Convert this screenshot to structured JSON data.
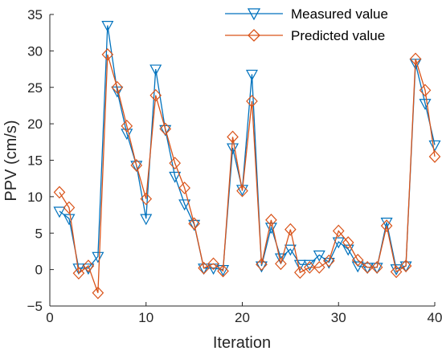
{
  "chart_data": {
    "type": "line",
    "xlabel": "Iteration",
    "ylabel": "PPV (cm/s)",
    "xlim": [
      0,
      40
    ],
    "ylim": [
      -5,
      35
    ],
    "xticks": [
      0,
      10,
      20,
      30,
      40
    ],
    "yticks": [
      -5,
      0,
      5,
      10,
      15,
      20,
      25,
      30,
      35
    ],
    "x": [
      1,
      2,
      3,
      4,
      5,
      6,
      7,
      8,
      9,
      10,
      11,
      12,
      13,
      14,
      15,
      16,
      17,
      18,
      19,
      20,
      21,
      22,
      23,
      24,
      25,
      26,
      27,
      28,
      29,
      30,
      31,
      32,
      33,
      34,
      35,
      36,
      37,
      38,
      39,
      40
    ],
    "series": [
      {
        "name": "Measured value",
        "color": "#0072BD",
        "marker": "triangle-down",
        "values": [
          8.0,
          7.0,
          0.2,
          0.2,
          1.8,
          33.5,
          24.5,
          18.7,
          14.3,
          7.0,
          27.5,
          19.2,
          12.8,
          9.0,
          6.2,
          0.2,
          0.2,
          0.0,
          16.7,
          11.0,
          26.8,
          0.5,
          5.8,
          1.6,
          2.8,
          0.7,
          0.7,
          2.0,
          1.0,
          3.8,
          2.8,
          0.5,
          0.3,
          0.3,
          6.5,
          0.1,
          0.5,
          28.3,
          22.8,
          17.1
        ]
      },
      {
        "name": "Predicted value",
        "color": "#D95319",
        "marker": "diamond",
        "values": [
          10.6,
          8.5,
          -0.5,
          0.5,
          -3.2,
          29.5,
          25.0,
          19.7,
          14.3,
          9.7,
          23.9,
          19.3,
          14.6,
          11.2,
          6.3,
          0.2,
          0.8,
          -0.2,
          18.2,
          10.8,
          23.1,
          0.7,
          6.8,
          0.8,
          5.5,
          -0.4,
          0.3,
          0.3,
          1.2,
          5.3,
          3.7,
          1.3,
          0.3,
          0.3,
          6.0,
          -0.3,
          0.5,
          28.9,
          24.6,
          15.5
        ]
      }
    ],
    "legend_position": "top-right",
    "grid": false
  }
}
